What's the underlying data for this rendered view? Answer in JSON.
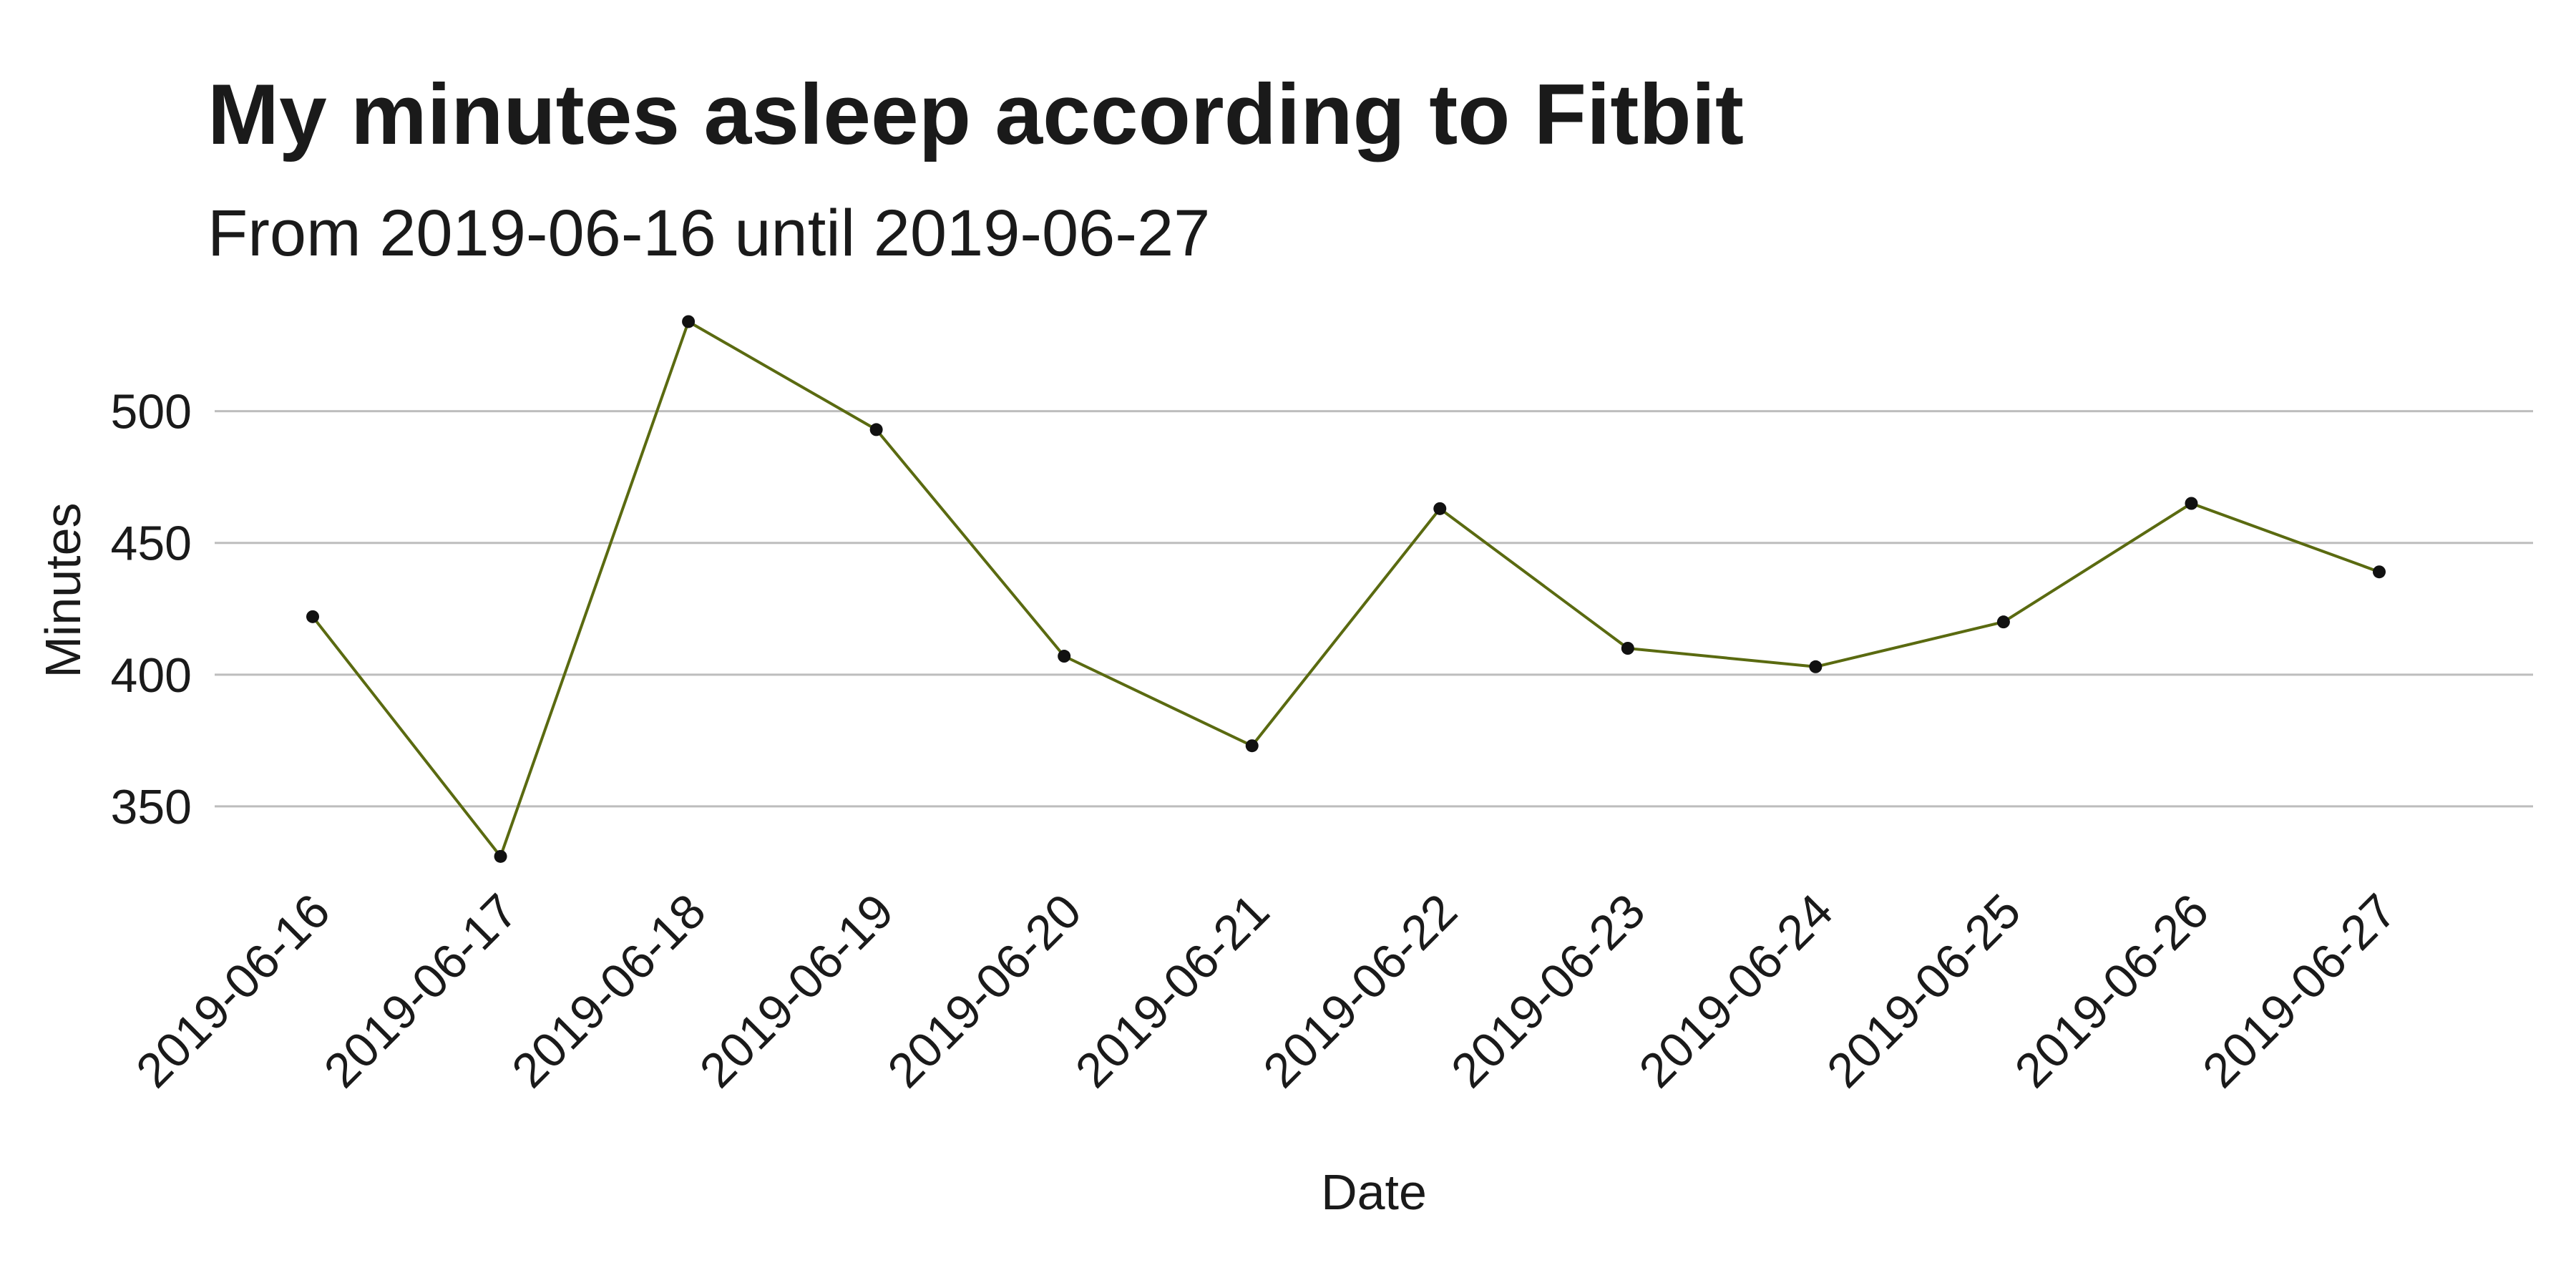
{
  "chart_data": {
    "type": "line",
    "title": "My minutes asleep according to Fitbit",
    "subtitle": "From 2019-06-16 until 2019-06-27",
    "xlabel": "Date",
    "ylabel": "Minutes",
    "categories": [
      "2019-06-16",
      "2019-06-17",
      "2019-06-18",
      "2019-06-19",
      "2019-06-20",
      "2019-06-21",
      "2019-06-22",
      "2019-06-23",
      "2019-06-24",
      "2019-06-25",
      "2019-06-26",
      "2019-06-27"
    ],
    "series": [
      {
        "values": [
          422,
          331,
          534,
          493,
          407,
          373,
          463,
          410,
          403,
          420,
          465,
          439
        ]
      }
    ],
    "yticks": [
      350,
      400,
      450,
      500
    ],
    "ylim": [
      322,
      542
    ],
    "grid": "horizontal",
    "legend": "none",
    "line_color": "#5a6a10",
    "point_color": "#111111",
    "grid_color": "#bdbdbd"
  }
}
